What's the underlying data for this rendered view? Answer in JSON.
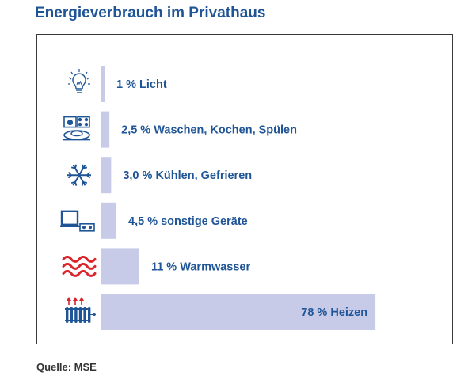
{
  "title": "Energieverbrauch im Privathaus",
  "source": "Quelle: MSE",
  "colors": {
    "bar": "#c7cbe8",
    "text": "#1f5596",
    "icon_blue": "#1f5596",
    "icon_red": "#d9252b"
  },
  "chart_data": {
    "type": "bar",
    "orientation": "horizontal",
    "title": "Energieverbrauch im Privathaus",
    "unit": "%",
    "categories": [
      "Licht",
      "Waschen, Kochen, Spülen",
      "Kühlen, Gefrieren",
      "sonstige Geräte",
      "Warmwasser",
      "Heizen"
    ],
    "values": [
      1,
      2.5,
      3.0,
      4.5,
      11,
      78
    ],
    "labels": [
      "1 % Licht",
      "2,5 % Waschen, Kochen, Spülen",
      "3,0 % Kühlen, Gefrieren",
      "4,5 % sonstige Geräte",
      "11 % Warmwasser",
      "78 % Heizen"
    ],
    "icons": [
      "lightbulb-icon",
      "appliances-icon",
      "snowflake-icon",
      "tv-devices-icon",
      "warm-water-icon",
      "radiator-icon"
    ],
    "grid": false,
    "legend": "none"
  }
}
